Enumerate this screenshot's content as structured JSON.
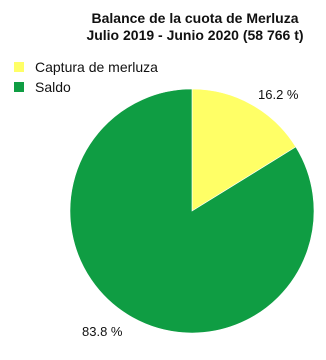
{
  "chart_data": {
    "type": "pie",
    "title": "Balance de la cuota de Merluza",
    "subtitle": "Julio 2019 - Junio 2020 (58 766 t)",
    "series": [
      {
        "name": "Captura de merluza",
        "value": 16.2,
        "label": "16.2 %",
        "color": "#ffff66"
      },
      {
        "name": "Saldo",
        "value": 83.8,
        "label": "83.8 %",
        "color": "#0f9d43"
      }
    ],
    "legend_position": "top-left"
  }
}
